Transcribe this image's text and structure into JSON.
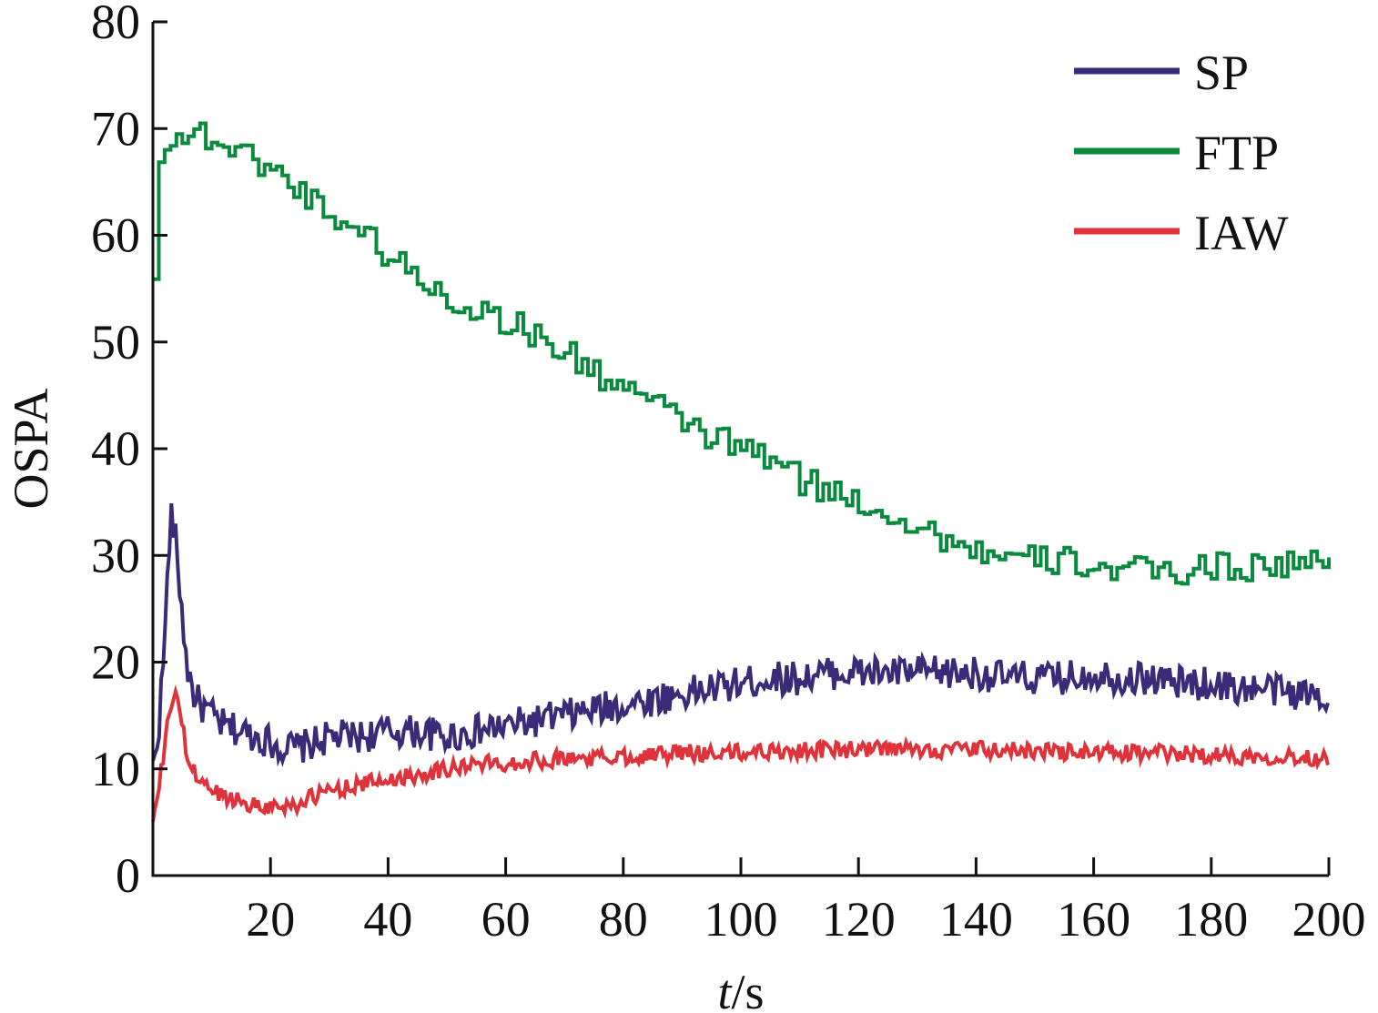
{
  "chart_data": {
    "type": "line",
    "xlabel": "t/s",
    "xlabel_italic_part": "t",
    "xlabel_rest": "/s",
    "ylabel": "OSPA",
    "xlim": [
      0,
      200
    ],
    "ylim": [
      0,
      80
    ],
    "xticks": [
      20,
      40,
      60,
      80,
      100,
      120,
      140,
      160,
      180,
      200
    ],
    "yticks": [
      0,
      10,
      20,
      30,
      40,
      50,
      60,
      70,
      80
    ],
    "grid": false,
    "legend_position": "top-right",
    "series": [
      {
        "name": "SP",
        "color": "#3b2a78",
        "x": [
          0,
          1,
          2,
          3,
          4,
          5,
          6,
          7,
          8,
          10,
          12,
          15,
          18,
          20,
          22,
          25,
          28,
          30,
          35,
          40,
          45,
          50,
          55,
          60,
          65,
          70,
          75,
          80,
          85,
          90,
          95,
          100,
          105,
          110,
          115,
          120,
          125,
          130,
          135,
          140,
          145,
          150,
          155,
          160,
          165,
          170,
          175,
          180,
          185,
          190,
          195,
          200
        ],
        "y": [
          10,
          14,
          22,
          34,
          31,
          24,
          19,
          17,
          16,
          15,
          14,
          13.5,
          13,
          12.5,
          12,
          12,
          12.5,
          13,
          13,
          13.5,
          13.5,
          13,
          13.5,
          14,
          14.5,
          15,
          15.5,
          16,
          16.5,
          17,
          17.5,
          18,
          18.5,
          18.5,
          19,
          19,
          19,
          19,
          19,
          19,
          18.5,
          18.5,
          18.5,
          19,
          18.5,
          18.5,
          18,
          18,
          17.5,
          17.5,
          17,
          17
        ]
      },
      {
        "name": "FTP",
        "color": "#0a8a3e",
        "x": [
          0,
          1,
          2,
          4,
          6,
          8,
          10,
          12,
          15,
          18,
          20,
          22,
          25,
          28,
          30,
          35,
          40,
          45,
          50,
          55,
          60,
          65,
          70,
          75,
          80,
          85,
          90,
          95,
          100,
          105,
          110,
          115,
          120,
          125,
          130,
          135,
          140,
          145,
          150,
          155,
          160,
          165,
          170,
          175,
          180,
          185,
          190,
          195,
          200
        ],
        "y": [
          55.5,
          68,
          69,
          69,
          69.5,
          69.5,
          69,
          68.5,
          67.5,
          67,
          66,
          65.5,
          64,
          63,
          62,
          60.5,
          58,
          56,
          54,
          53,
          52,
          50.5,
          49,
          47,
          46,
          44,
          42.5,
          41,
          40,
          39,
          37,
          36,
          35,
          34,
          32.5,
          31.5,
          30.5,
          29.5,
          29.5,
          29.5,
          29,
          28.5,
          28.5,
          28.5,
          29,
          29,
          29,
          29.5,
          29
        ]
      },
      {
        "name": "IAW",
        "color": "#e0323a",
        "x": [
          0,
          1,
          2,
          3,
          4,
          5,
          6,
          8,
          10,
          12,
          15,
          18,
          20,
          22,
          25,
          28,
          30,
          35,
          40,
          45,
          50,
          55,
          60,
          65,
          70,
          75,
          80,
          85,
          90,
          95,
          100,
          105,
          110,
          115,
          120,
          125,
          130,
          135,
          140,
          145,
          150,
          155,
          160,
          165,
          170,
          175,
          180,
          185,
          190,
          195,
          200
        ],
        "y": [
          5,
          8,
          12,
          16,
          17.5,
          14,
          10.5,
          9,
          8,
          7.5,
          7,
          6.5,
          6.5,
          6.5,
          6.8,
          7.5,
          8,
          8.5,
          9,
          9.5,
          10,
          10.5,
          10.5,
          10.8,
          11,
          11,
          11.2,
          11.3,
          11.5,
          11.5,
          11.5,
          11.7,
          11.7,
          11.8,
          11.8,
          11.8,
          11.8,
          11.8,
          11.8,
          11.7,
          11.7,
          11.6,
          11.5,
          11.5,
          11.5,
          11.4,
          11.3,
          11.2,
          11.2,
          11.1,
          11
        ]
      }
    ]
  }
}
